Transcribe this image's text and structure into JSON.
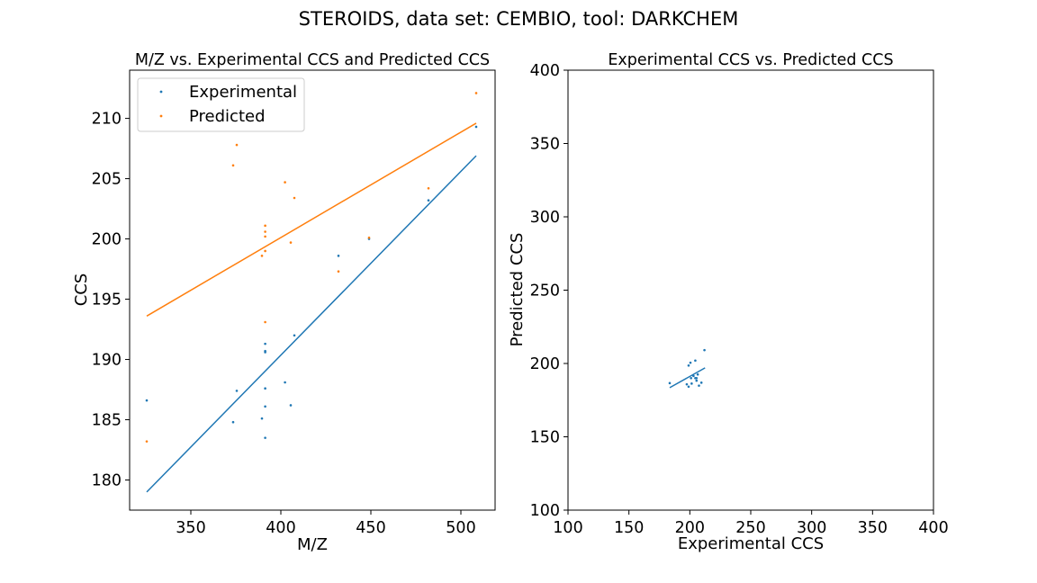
{
  "figure": {
    "suptitle": "STEROIDS, data set: CEMBIO, tool: DARKCHEM"
  },
  "colors": {
    "experimental": "#1f77b4",
    "predicted": "#ff7f0e"
  },
  "chart_data": [
    {
      "type": "scatter",
      "title": "M/Z vs. Experimental CCS and Predicted CCS",
      "xlabel": "M/Z",
      "ylabel": "CCS",
      "xlim": [
        316,
        519
      ],
      "ylim": [
        177.5,
        214.0
      ],
      "xticks": [
        350,
        400,
        450,
        500
      ],
      "yticks": [
        180,
        185,
        190,
        195,
        200,
        205,
        210
      ],
      "legend": {
        "placement": "upper-left"
      },
      "series": [
        {
          "name": "Experimental",
          "color": "#1f77b4",
          "points": [
            [
              325.5,
              186.6
            ],
            [
              373.5,
              184.8
            ],
            [
              375.5,
              187.4
            ],
            [
              389.5,
              185.1
            ],
            [
              391.3,
              191.3
            ],
            [
              391.3,
              190.7
            ],
            [
              391.3,
              190.6
            ],
            [
              391.3,
              187.6
            ],
            [
              391.3,
              186.1
            ],
            [
              391.3,
              183.5
            ],
            [
              402.3,
              188.1
            ],
            [
              405.5,
              186.2
            ],
            [
              407.5,
              192.0
            ],
            [
              432.0,
              198.6
            ],
            [
              449.0,
              200.0
            ],
            [
              482.0,
              203.2
            ],
            [
              508.5,
              209.3
            ]
          ],
          "fit": [
            [
              325.5,
              179.0
            ],
            [
              508.5,
              206.9
            ]
          ]
        },
        {
          "name": "Predicted",
          "color": "#ff7f0e",
          "points": [
            [
              325.5,
              183.2
            ],
            [
              373.5,
              206.1
            ],
            [
              375.5,
              207.8
            ],
            [
              389.5,
              198.6
            ],
            [
              391.3,
              201.1
            ],
            [
              391.3,
              200.6
            ],
            [
              391.3,
              200.2
            ],
            [
              391.3,
              199.0
            ],
            [
              391.3,
              193.1
            ],
            [
              402.3,
              204.7
            ],
            [
              405.5,
              199.7
            ],
            [
              407.5,
              203.4
            ],
            [
              432.0,
              197.3
            ],
            [
              449.0,
              200.1
            ],
            [
              482.0,
              204.2
            ],
            [
              508.5,
              212.1
            ]
          ],
          "fit": [
            [
              325.5,
              193.6
            ],
            [
              508.5,
              209.6
            ]
          ]
        }
      ]
    },
    {
      "type": "scatter",
      "title": "Experimental CCS vs. Predicted CCS",
      "xlabel": "Experimental CCS",
      "ylabel": "Predicted CCS",
      "xlim": [
        100,
        400
      ],
      "ylim": [
        100,
        400
      ],
      "xticks": [
        100,
        150,
        200,
        250,
        300,
        350,
        400
      ],
      "yticks": [
        100,
        150,
        200,
        250,
        300,
        350,
        400
      ],
      "series": [
        {
          "color": "#1f77b4",
          "points": [
            [
              183.5,
              186.6
            ],
            [
              197.5,
              185.8
            ],
            [
              199.0,
              184.2
            ],
            [
              199.0,
              198.6
            ],
            [
              200.5,
              200.5
            ],
            [
              201.5,
              186.3
            ],
            [
              201.0,
              190.0
            ],
            [
              203.0,
              191.5
            ],
            [
              204.5,
              190.0
            ],
            [
              204.5,
              202.0
            ],
            [
              205.5,
              188.3
            ],
            [
              205.5,
              190.0
            ],
            [
              206.5,
              192.5
            ],
            [
              207.5,
              184.9
            ],
            [
              209.5,
              186.9
            ],
            [
              212.0,
              209.1
            ]
          ],
          "fit": [
            [
              183.5,
              183.5
            ],
            [
              212.5,
              197.0
            ]
          ]
        }
      ]
    }
  ]
}
